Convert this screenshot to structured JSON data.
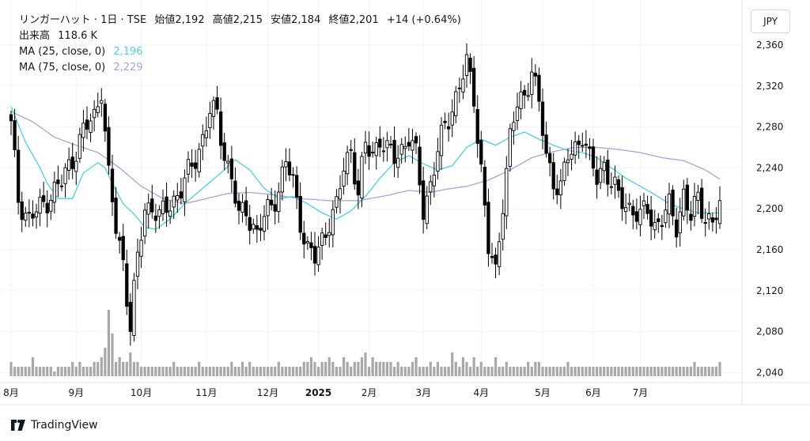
{
  "legend": {
    "symbol_line": "リンガーハット · 1日 · TSE",
    "open_label": "始値",
    "open": "2,192",
    "high_label": "高値",
    "high": "2,215",
    "low_label": "安値",
    "low": "2,184",
    "close_label": "終値",
    "close": "2,201",
    "change": "+14 (+0.64%)",
    "volume_label": "出来高",
    "volume": "118.6 K",
    "ma25_label": "MA (25, close, 0)",
    "ma25_value": "2,196",
    "ma75_label": "MA (75, close, 0)",
    "ma75_value": "2,229"
  },
  "currency": "JPY",
  "brand": "TradingView",
  "colors": {
    "up": "#000000",
    "up_fill": "#ffffff",
    "down": "#000000",
    "ma25": "#4dd0e1",
    "ma75": "#b39ddb",
    "volume": "#a8a8a8",
    "grid": "#f0f3fa"
  },
  "chart_data": {
    "type": "candlestick",
    "yaxis": {
      "ticks": [
        "2,360",
        "2,320",
        "2,280",
        "2,240",
        "2,200",
        "2,160",
        "2,120",
        "2,080",
        "2,040"
      ],
      "range": [
        2035,
        2370
      ]
    },
    "xaxis": {
      "ticks": [
        "8月",
        "9月",
        "10月",
        "11月",
        "12月",
        "2025",
        "2月",
        "3月",
        "4月",
        "5月",
        "6月",
        "7月"
      ]
    },
    "month_starts": [
      2024.583,
      2024.667,
      2024.75,
      2024.833,
      2024.917,
      2025.0,
      2025.083,
      2025.167,
      2025.25,
      2025.333,
      2025.417,
      2025.5
    ],
    "anchors": [
      {
        "i": 0,
        "p": 2280
      },
      {
        "i": 2,
        "p": 2210
      },
      {
        "i": 5,
        "p": 2190
      },
      {
        "i": 8,
        "p": 2200
      },
      {
        "i": 11,
        "p": 2215
      },
      {
        "i": 14,
        "p": 2225
      },
      {
        "i": 17,
        "p": 2250
      },
      {
        "i": 20,
        "p": 2275
      },
      {
        "i": 23,
        "p": 2290
      },
      {
        "i": 25,
        "p": 2320
      },
      {
        "i": 27,
        "p": 2230
      },
      {
        "i": 29,
        "p": 2180
      },
      {
        "i": 31,
        "p": 2150
      },
      {
        "i": 33,
        "p": 2085
      },
      {
        "i": 35,
        "p": 2150
      },
      {
        "i": 37,
        "p": 2200
      },
      {
        "i": 39,
        "p": 2205
      },
      {
        "i": 41,
        "p": 2190
      },
      {
        "i": 44,
        "p": 2205
      },
      {
        "i": 47,
        "p": 2220
      },
      {
        "i": 50,
        "p": 2240
      },
      {
        "i": 53,
        "p": 2270
      },
      {
        "i": 55,
        "p": 2295
      },
      {
        "i": 57,
        "p": 2290
      },
      {
        "i": 59,
        "p": 2255
      },
      {
        "i": 61,
        "p": 2230
      },
      {
        "i": 63,
        "p": 2190
      },
      {
        "i": 65,
        "p": 2200
      },
      {
        "i": 68,
        "p": 2175
      },
      {
        "i": 70,
        "p": 2190
      },
      {
        "i": 72,
        "p": 2205
      },
      {
        "i": 74,
        "p": 2220
      },
      {
        "i": 76,
        "p": 2245
      },
      {
        "i": 78,
        "p": 2225
      },
      {
        "i": 80,
        "p": 2190
      },
      {
        "i": 82,
        "p": 2160
      },
      {
        "i": 84,
        "p": 2150
      },
      {
        "i": 86,
        "p": 2170
      },
      {
        "i": 88,
        "p": 2190
      },
      {
        "i": 90,
        "p": 2200
      },
      {
        "i": 92,
        "p": 2240
      },
      {
        "i": 94,
        "p": 2260
      },
      {
        "i": 96,
        "p": 2215
      },
      {
        "i": 98,
        "p": 2260
      },
      {
        "i": 100,
        "p": 2255
      },
      {
        "i": 102,
        "p": 2270
      },
      {
        "i": 104,
        "p": 2255
      },
      {
        "i": 106,
        "p": 2250
      },
      {
        "i": 108,
        "p": 2260
      },
      {
        "i": 110,
        "p": 2270
      },
      {
        "i": 112,
        "p": 2250
      },
      {
        "i": 114,
        "p": 2200
      },
      {
        "i": 116,
        "p": 2225
      },
      {
        "i": 118,
        "p": 2255
      },
      {
        "i": 120,
        "p": 2280
      },
      {
        "i": 122,
        "p": 2300
      },
      {
        "i": 124,
        "p": 2320
      },
      {
        "i": 126,
        "p": 2340
      },
      {
        "i": 128,
        "p": 2310
      },
      {
        "i": 130,
        "p": 2240
      },
      {
        "i": 132,
        "p": 2160
      },
      {
        "i": 134,
        "p": 2135
      },
      {
        "i": 136,
        "p": 2210
      },
      {
        "i": 138,
        "p": 2270
      },
      {
        "i": 140,
        "p": 2300
      },
      {
        "i": 142,
        "p": 2310
      },
      {
        "i": 144,
        "p": 2340
      },
      {
        "i": 146,
        "p": 2300
      },
      {
        "i": 148,
        "p": 2250
      },
      {
        "i": 150,
        "p": 2230
      },
      {
        "i": 152,
        "p": 2220
      },
      {
        "i": 154,
        "p": 2250
      },
      {
        "i": 156,
        "p": 2260
      },
      {
        "i": 158,
        "p": 2275
      },
      {
        "i": 160,
        "p": 2245
      },
      {
        "i": 162,
        "p": 2230
      },
      {
        "i": 164,
        "p": 2245
      },
      {
        "i": 166,
        "p": 2225
      },
      {
        "i": 168,
        "p": 2210
      },
      {
        "i": 170,
        "p": 2205
      },
      {
        "i": 172,
        "p": 2200
      },
      {
        "i": 174,
        "p": 2190
      },
      {
        "i": 176,
        "p": 2200
      },
      {
        "i": 178,
        "p": 2185
      },
      {
        "i": 180,
        "p": 2190
      },
      {
        "i": 182,
        "p": 2200
      },
      {
        "i": 184,
        "p": 2185
      },
      {
        "i": 186,
        "p": 2215
      },
      {
        "i": 188,
        "p": 2190
      },
      {
        "i": 190,
        "p": 2210
      },
      {
        "i": 192,
        "p": 2195
      },
      {
        "i": 194,
        "p": 2185
      },
      {
        "i": 196,
        "p": 2201
      }
    ],
    "ma25": [
      [
        0,
        2300
      ],
      [
        4,
        2265
      ],
      [
        8,
        2240
      ],
      [
        10,
        2225
      ],
      [
        13,
        2210
      ],
      [
        17,
        2210
      ],
      [
        20,
        2235
      ],
      [
        24,
        2245
      ],
      [
        26,
        2240
      ],
      [
        28,
        2225
      ],
      [
        31,
        2205
      ],
      [
        34,
        2195
      ],
      [
        37,
        2182
      ],
      [
        40,
        2180
      ],
      [
        44,
        2190
      ],
      [
        48,
        2205
      ],
      [
        53,
        2220
      ],
      [
        58,
        2235
      ],
      [
        62,
        2248
      ],
      [
        66,
        2238
      ],
      [
        70,
        2220
      ],
      [
        74,
        2210
      ],
      [
        78,
        2212
      ],
      [
        82,
        2205
      ],
      [
        86,
        2196
      ],
      [
        90,
        2190
      ],
      [
        94,
        2198
      ],
      [
        98,
        2212
      ],
      [
        102,
        2230
      ],
      [
        106,
        2245
      ],
      [
        110,
        2252
      ],
      [
        114,
        2244
      ],
      [
        118,
        2238
      ],
      [
        122,
        2242
      ],
      [
        126,
        2260
      ],
      [
        130,
        2268
      ],
      [
        134,
        2262
      ],
      [
        138,
        2270
      ],
      [
        142,
        2275
      ],
      [
        146,
        2268
      ],
      [
        150,
        2262
      ],
      [
        154,
        2257
      ],
      [
        158,
        2255
      ],
      [
        162,
        2250
      ],
      [
        166,
        2240
      ],
      [
        170,
        2230
      ],
      [
        174,
        2222
      ],
      [
        178,
        2214
      ],
      [
        182,
        2205
      ],
      [
        186,
        2200
      ],
      [
        190,
        2196
      ],
      [
        196,
        2196
      ]
    ],
    "ma75": [
      [
        0,
        2295
      ],
      [
        6,
        2285
      ],
      [
        12,
        2270
      ],
      [
        18,
        2262
      ],
      [
        24,
        2255
      ],
      [
        30,
        2240
      ],
      [
        36,
        2222
      ],
      [
        42,
        2210
      ],
      [
        48,
        2205
      ],
      [
        54,
        2210
      ],
      [
        60,
        2215
      ],
      [
        66,
        2216
      ],
      [
        72,
        2214
      ],
      [
        80,
        2210
      ],
      [
        88,
        2208
      ],
      [
        96,
        2208
      ],
      [
        104,
        2213
      ],
      [
        110,
        2218
      ],
      [
        116,
        2216
      ],
      [
        120,
        2219
      ],
      [
        126,
        2222
      ],
      [
        132,
        2228
      ],
      [
        138,
        2238
      ],
      [
        144,
        2250
      ],
      [
        150,
        2256
      ],
      [
        156,
        2260
      ],
      [
        162,
        2260
      ],
      [
        168,
        2258
      ],
      [
        174,
        2255
      ],
      [
        180,
        2250
      ],
      [
        186,
        2247
      ],
      [
        192,
        2238
      ],
      [
        196,
        2229
      ]
    ],
    "volume_levels": [
      3,
      2,
      2,
      2,
      2,
      2,
      4,
      2,
      2,
      2,
      2,
      2,
      1,
      2,
      2,
      2,
      2,
      3,
      2,
      3,
      2,
      2,
      2,
      3,
      3,
      4,
      6,
      14,
      9,
      3,
      4,
      3,
      3,
      5,
      3,
      3,
      2,
      2,
      2,
      2,
      2,
      2,
      2,
      2,
      2,
      3,
      2,
      2,
      2,
      2,
      2,
      2,
      3,
      2,
      2,
      2,
      2,
      2,
      2,
      2,
      2,
      3,
      2,
      2,
      3,
      2,
      3,
      2,
      2,
      2,
      2,
      2,
      2,
      2,
      3,
      2,
      2,
      2,
      2,
      2,
      2,
      3,
      3,
      4,
      3,
      2,
      3,
      3,
      4,
      3,
      2,
      2,
      4,
      3,
      2,
      3,
      3,
      4,
      5,
      2,
      4,
      3,
      3,
      3,
      3,
      3,
      2,
      3,
      2,
      2,
      2,
      3,
      4,
      2,
      2,
      2,
      3,
      2,
      3,
      2,
      2,
      2,
      5,
      3,
      2,
      4,
      3,
      2,
      4,
      2,
      3,
      2,
      2,
      2,
      4,
      2,
      2,
      3,
      2,
      2,
      2,
      2,
      2,
      3,
      2,
      3,
      3,
      2,
      2,
      2,
      2,
      2,
      2,
      2,
      3,
      2,
      2,
      2,
      2,
      2,
      2,
      2,
      2,
      2,
      2,
      2,
      2,
      2,
      2,
      2,
      2,
      2,
      2,
      2,
      2,
      2,
      2,
      2,
      2,
      2,
      2,
      2,
      2,
      2,
      2,
      2,
      2,
      2,
      2,
      3,
      2,
      2,
      2,
      2,
      2,
      2,
      3
    ]
  }
}
